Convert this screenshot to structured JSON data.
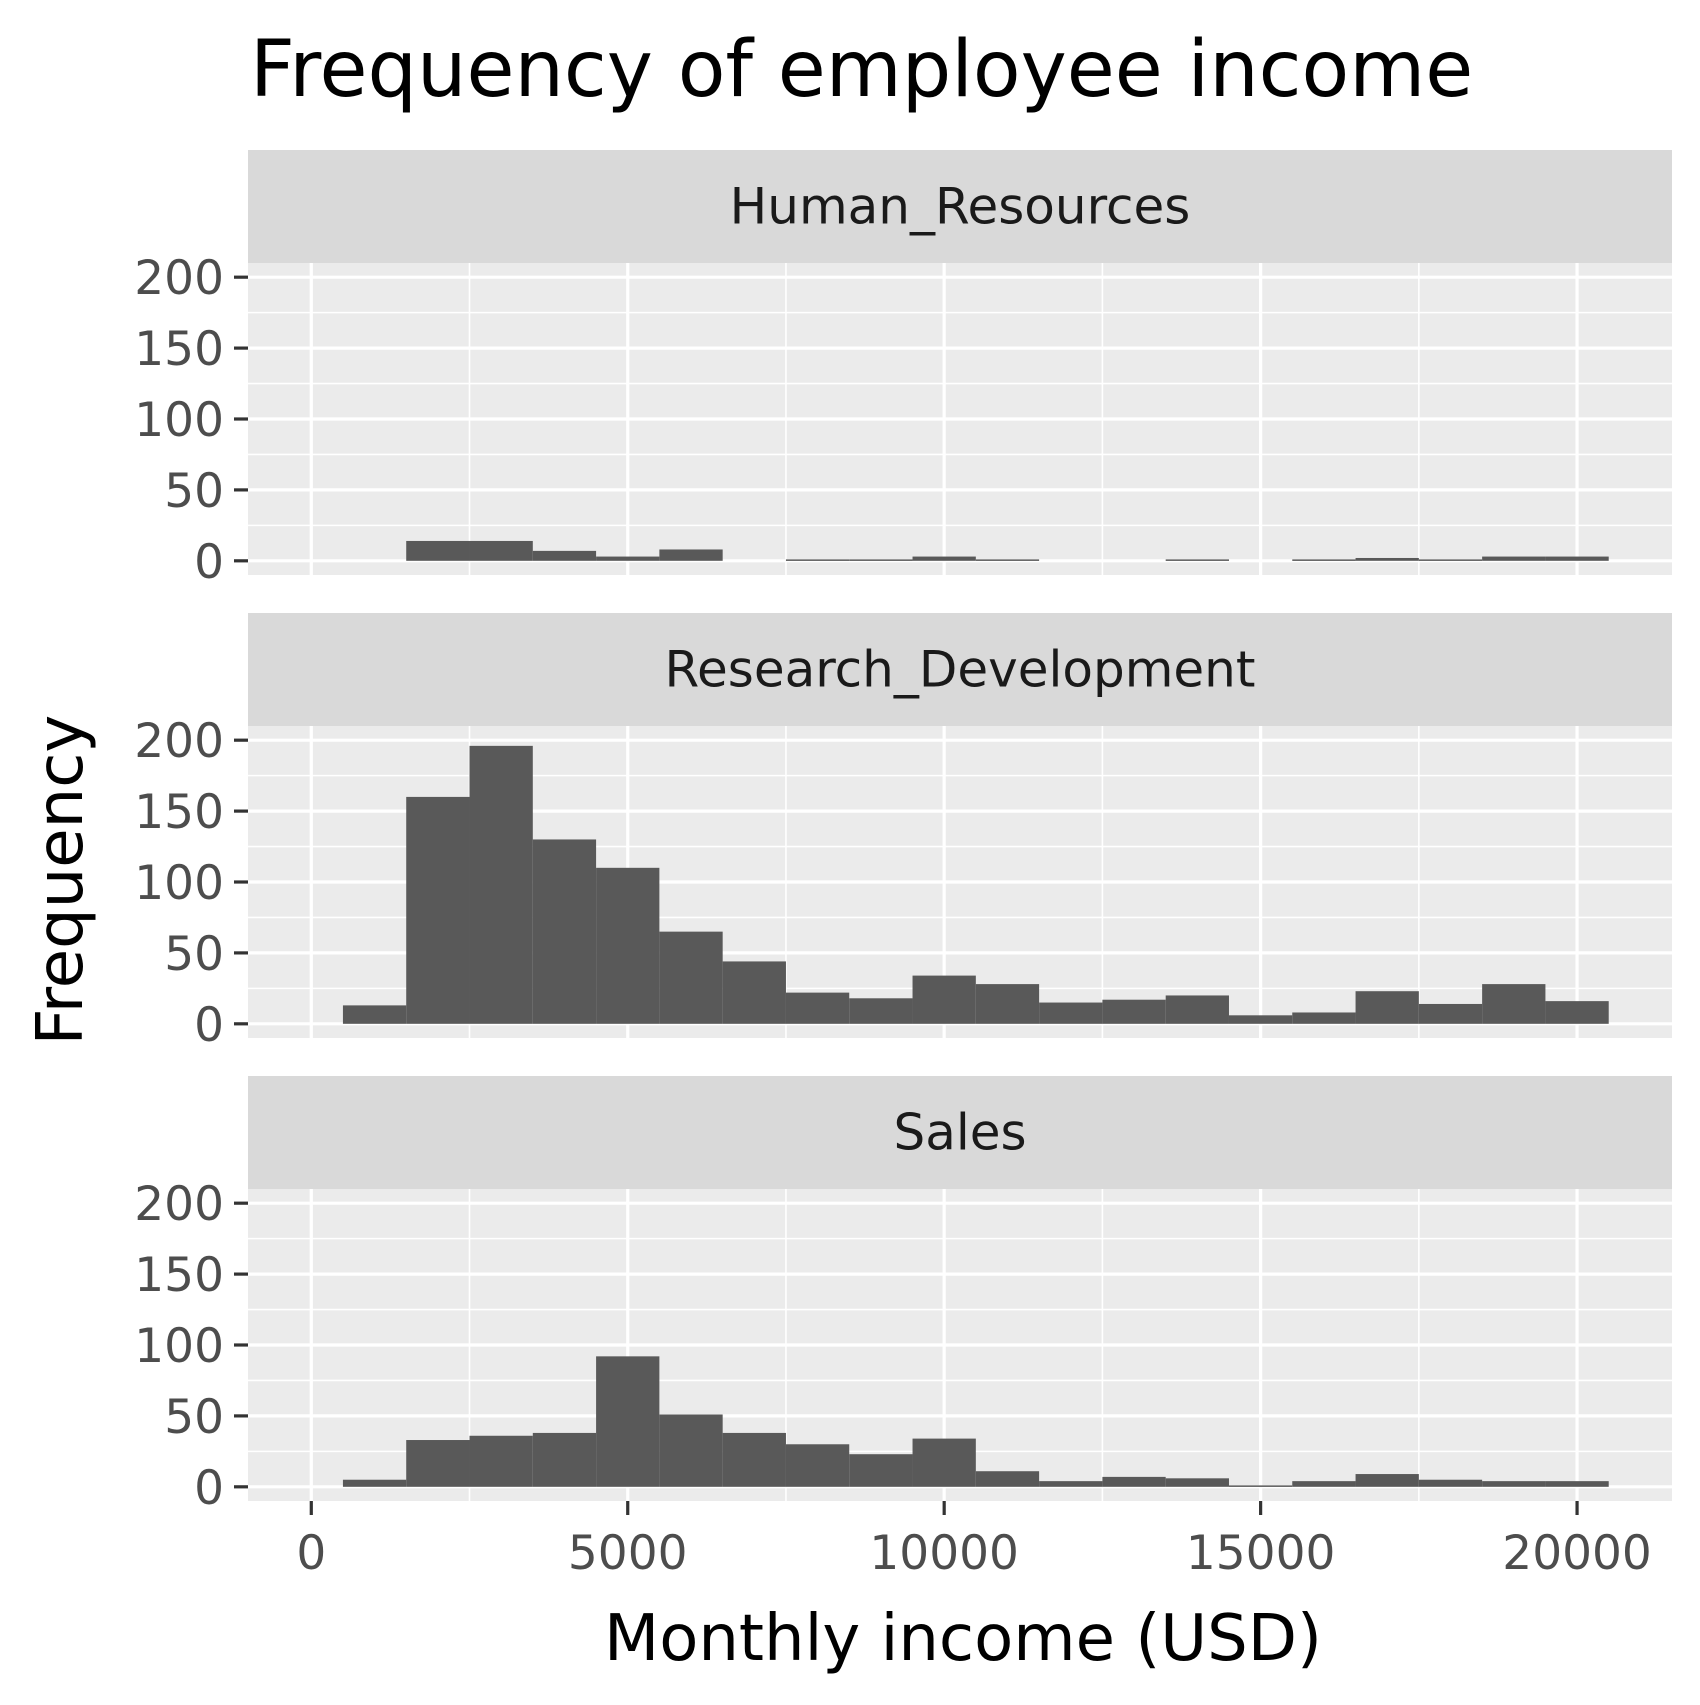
{
  "chart_data": {
    "type": "bar",
    "title": "Frequency of employee income",
    "xlabel": "Monthly income (USD)",
    "ylabel": "Frequency",
    "xlim": [
      -1000,
      21500
    ],
    "ylim": [
      -10,
      210
    ],
    "x_ticks": [
      0,
      5000,
      10000,
      15000,
      20000
    ],
    "x_tick_labels": [
      "0",
      "5000",
      "10000",
      "15000",
      "20000"
    ],
    "y_ticks": [
      0,
      50,
      100,
      150,
      200
    ],
    "y_tick_labels": [
      "0",
      "50",
      "100",
      "150",
      "200"
    ],
    "grid": true,
    "bin_width": 1000,
    "bin_centers": [
      1000,
      2000,
      3000,
      4000,
      5000,
      6000,
      7000,
      8000,
      9000,
      10000,
      11000,
      12000,
      13000,
      14000,
      15000,
      16000,
      17000,
      18000,
      19000,
      20000
    ],
    "colors": {
      "bar": "#595959",
      "panel": "#ebebeb",
      "strip": "#d9d9d9",
      "grid": "#ffffff"
    },
    "facets": [
      {
        "label": "Human_Resources",
        "values": [
          0,
          14,
          14,
          7,
          3,
          8,
          0,
          1,
          1,
          3,
          1,
          0,
          0,
          1,
          0,
          1,
          2,
          1,
          3,
          3
        ]
      },
      {
        "label": "Research_Development",
        "values": [
          13,
          160,
          196,
          130,
          110,
          65,
          44,
          22,
          18,
          34,
          28,
          15,
          17,
          20,
          6,
          8,
          23,
          14,
          28,
          16
        ]
      },
      {
        "label": "Sales",
        "values": [
          5,
          33,
          36,
          38,
          92,
          51,
          38,
          30,
          23,
          34,
          11,
          4,
          7,
          6,
          1,
          4,
          9,
          5,
          4,
          4
        ]
      }
    ]
  }
}
